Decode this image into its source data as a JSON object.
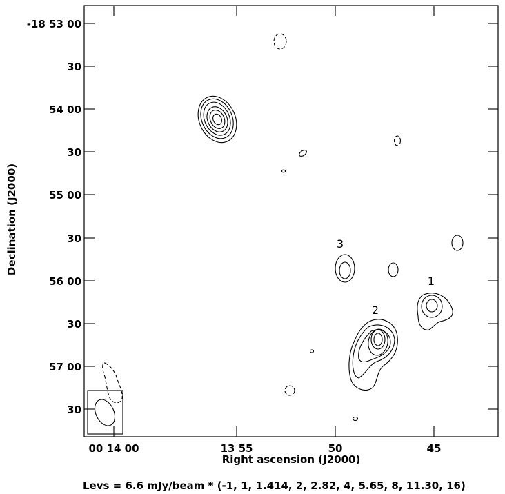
{
  "chart_data": {
    "type": "contour",
    "xlabel": "Right ascension (J2000)",
    "ylabel": "Declination (J2000)",
    "x_ticks": [
      "00 14 00",
      "13 55",
      "50",
      "45"
    ],
    "y_ticks": [
      "-18 53 00",
      "30",
      "54 00",
      "30",
      "55 00",
      "30",
      "56 00",
      "30",
      "57 00",
      "30"
    ],
    "caption": "Levs = 6.6 mJy/beam * (-1, 1, 1.414, 2, 2.82, 4, 5.65, 8, 11.30, 16)",
    "unit": "mJy/beam",
    "base_level": 6.6,
    "levels": [
      -1,
      1,
      1.414,
      2,
      2.82,
      4,
      5.65,
      8,
      11.3,
      16
    ],
    "source_labels": [
      "1",
      "2",
      "3"
    ]
  }
}
